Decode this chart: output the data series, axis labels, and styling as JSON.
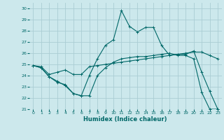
{
  "xlabel": "Humidex (Indice chaleur)",
  "background_color": "#cce8ec",
  "grid_color": "#aacdd4",
  "line_color": "#006868",
  "xlim": [
    -0.5,
    23.5
  ],
  "ylim": [
    21,
    30.5
  ],
  "yticks": [
    21,
    22,
    23,
    24,
    25,
    26,
    27,
    28,
    29,
    30
  ],
  "xticks": [
    0,
    1,
    2,
    3,
    4,
    5,
    6,
    7,
    8,
    9,
    10,
    11,
    12,
    13,
    14,
    15,
    16,
    17,
    18,
    19,
    20,
    21,
    22,
    23
  ],
  "series": [
    [
      24.9,
      24.7,
      23.9,
      23.5,
      23.1,
      22.4,
      22.2,
      22.2,
      24.0,
      24.7,
      25.2,
      25.5,
      25.6,
      25.7,
      25.7,
      25.8,
      25.9,
      26.0,
      25.8,
      25.8,
      25.5,
      22.5,
      21.0,
      21.0
    ],
    [
      24.9,
      24.7,
      23.9,
      23.4,
      23.2,
      22.4,
      22.2,
      24.0,
      25.5,
      26.7,
      27.2,
      29.8,
      28.4,
      27.9,
      28.3,
      28.3,
      26.7,
      25.8,
      25.9,
      25.9,
      26.2,
      24.3,
      22.6,
      21.0
    ],
    [
      24.9,
      24.8,
      24.1,
      24.3,
      24.5,
      24.1,
      24.1,
      24.8,
      24.9,
      25.0,
      25.1,
      25.2,
      25.3,
      25.4,
      25.5,
      25.6,
      25.7,
      25.8,
      25.9,
      26.0,
      26.1,
      26.1,
      25.8,
      25.5
    ]
  ]
}
